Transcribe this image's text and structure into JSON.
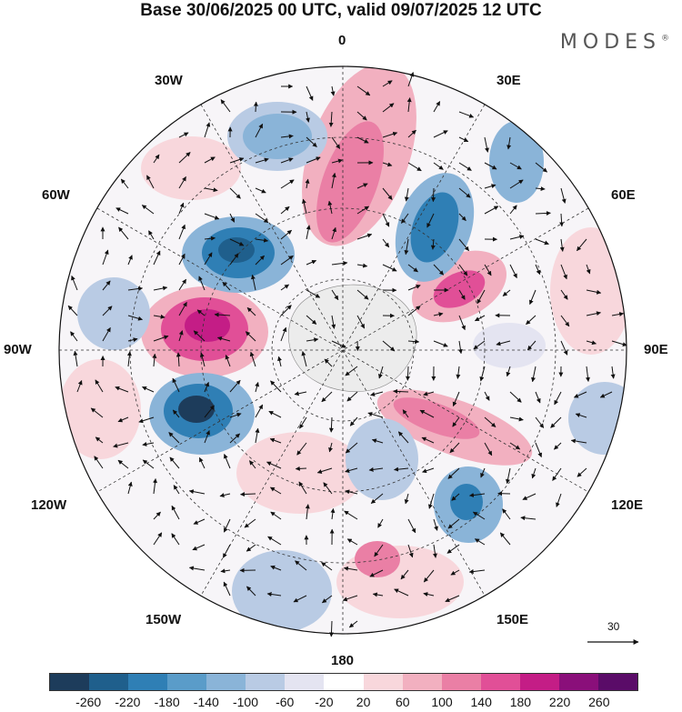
{
  "title": "Base 30/06/2025 00 UTC, valid 09/07/2025 12 UTC",
  "logo": "MODES",
  "logo_mark": "®",
  "longitude_labels": {
    "lon0": "0",
    "lon30e": "30E",
    "lon60e": "60E",
    "lon90e": "90E",
    "lon120e": "120E",
    "lon150e": "150E",
    "lon180": "180",
    "lon150w": "150W",
    "lon120w": "120W",
    "lon90w": "90W",
    "lon60w": "60W",
    "lon30w": "30W"
  },
  "vector_reference": "30",
  "colorbar": {
    "ticks": [
      "-260",
      "-220",
      "-180",
      "-140",
      "-100",
      "-60",
      "-20",
      "20",
      "60",
      "100",
      "140",
      "180",
      "220",
      "260"
    ],
    "colors": [
      "#1d3c5b",
      "#1f5f8c",
      "#2f7fb5",
      "#5a9cc9",
      "#8ab4d8",
      "#b9cbe4",
      "#e4e4f1",
      "#ffffff",
      "#f8d7dc",
      "#f2b0c0",
      "#ea7fa5",
      "#e14f97",
      "#c41d86",
      "#8a0f7a",
      "#5a0c68"
    ]
  }
}
